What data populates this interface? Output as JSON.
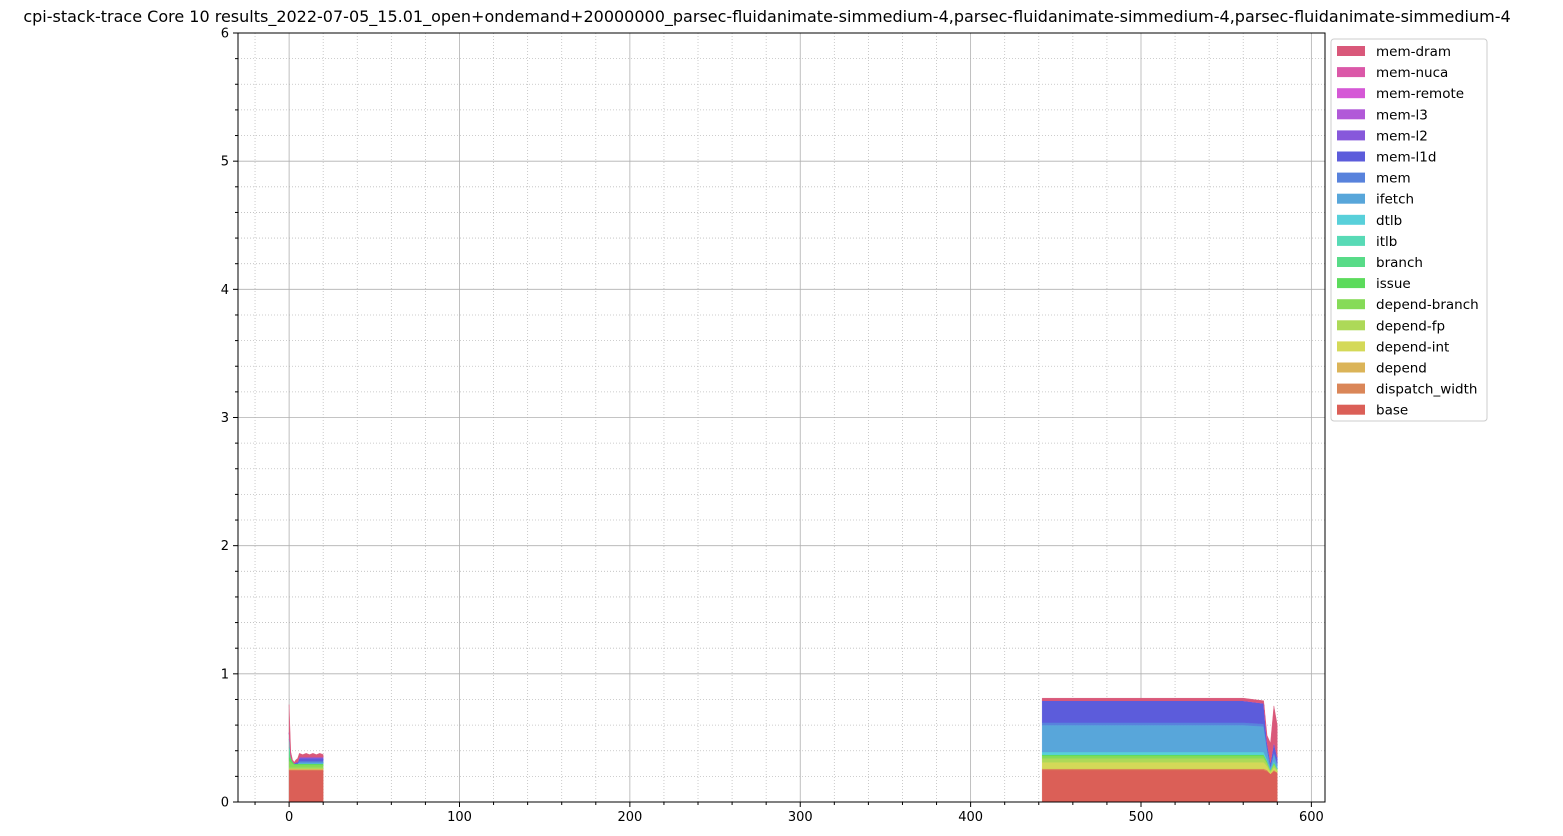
{
  "chart_data": {
    "type": "area",
    "title": "cpi-stack-trace Core 10 results_2022-07-05_15.01_open+ondemand+20000000_parsec-fluidanimate-simmedium-4,parsec-fluidanimate-simmedium-4,parsec-fluidanimate-simmedium-4",
    "xlabel": "",
    "ylabel": "",
    "xlim": [
      -30,
      608
    ],
    "ylim": [
      0,
      6
    ],
    "x_ticks": [
      "0",
      "100",
      "200",
      "300",
      "400",
      "500",
      "600"
    ],
    "y_ticks": [
      "0",
      "1",
      "2",
      "3",
      "4",
      "5",
      "6"
    ],
    "grid": true,
    "minor_grid": true,
    "legend_position": "outside-top-right",
    "stack_order": [
      "base",
      "dispatch_width",
      "depend",
      "depend-int",
      "depend-fp",
      "depend-branch",
      "issue",
      "branch",
      "itlb",
      "dtlb",
      "ifetch",
      "mem",
      "mem-l1d",
      "mem-l2",
      "mem-l3",
      "mem-remote",
      "mem-nuca",
      "mem-dram"
    ],
    "legend": [
      "mem-dram",
      "mem-nuca",
      "mem-remote",
      "mem-l3",
      "mem-l2",
      "mem-l1d",
      "mem",
      "ifetch",
      "dtlb",
      "itlb",
      "branch",
      "issue",
      "depend-branch",
      "depend-fp",
      "depend-int",
      "depend",
      "dispatch_width",
      "base"
    ],
    "colors": {
      "mem-dram": "#d9587a",
      "mem-nuca": "#db58a8",
      "mem-remote": "#d558d6",
      "mem-l3": "#b159d8",
      "mem-l2": "#8758db",
      "mem-l1d": "#5c5cdb",
      "mem": "#5882dc",
      "ifetch": "#58a6da",
      "dtlb": "#58d0da",
      "itlb": "#58dab6",
      "branch": "#58db88",
      "issue": "#5cdb5c",
      "depend-branch": "#86db58",
      "depend-fp": "#add958",
      "depend-int": "#d4d958",
      "depend": "#dbb458",
      "dispatch_width": "#da8658",
      "base": "#db5f57"
    },
    "segments": [
      {
        "x": [
          0,
          1,
          2,
          3,
          4,
          5,
          6,
          8,
          10,
          12,
          14,
          16,
          18,
          20
        ],
        "series": {
          "base": [
            0.25,
            0.25,
            0.25,
            0.25,
            0.25,
            0.25,
            0.25,
            0.25,
            0.25,
            0.25,
            0.25,
            0.25,
            0.25,
            0.25
          ],
          "dispatch_width": [
            0,
            0,
            0,
            0,
            0,
            0,
            0,
            0,
            0,
            0,
            0,
            0,
            0,
            0
          ],
          "depend": [
            0.01,
            0.01,
            0.01,
            0.01,
            0.01,
            0.01,
            0.01,
            0.01,
            0.01,
            0.01,
            0.01,
            0.01,
            0.01,
            0.01
          ],
          "depend-int": [
            0,
            0,
            0,
            0,
            0,
            0,
            0,
            0,
            0,
            0,
            0,
            0,
            0,
            0
          ],
          "depend-fp": [
            0.01,
            0.01,
            0.01,
            0.01,
            0.01,
            0.01,
            0.01,
            0.01,
            0.01,
            0.01,
            0.01,
            0.01,
            0.01,
            0.01
          ],
          "depend-branch": [
            0.05,
            0.04,
            0.03,
            0.02,
            0.02,
            0.02,
            0.02,
            0.02,
            0.02,
            0.02,
            0.02,
            0.02,
            0.02,
            0.02
          ],
          "issue": [
            0.03,
            0.03,
            0.02,
            0.01,
            0.01,
            0.01,
            0.01,
            0.01,
            0.01,
            0.01,
            0.01,
            0.01,
            0.01,
            0.01
          ],
          "branch": [
            0.08,
            0.01,
            0,
            0,
            0,
            0,
            0,
            0,
            0,
            0,
            0,
            0,
            0,
            0
          ],
          "itlb": [
            0.06,
            0,
            0,
            0,
            0,
            0,
            0,
            0,
            0,
            0,
            0,
            0,
            0,
            0
          ],
          "dtlb": [
            0,
            0,
            0,
            0,
            0,
            0,
            0,
            0,
            0,
            0,
            0,
            0,
            0,
            0
          ],
          "ifetch": [
            0.05,
            0,
            0,
            0,
            0,
            0,
            0.01,
            0.01,
            0.01,
            0.01,
            0.01,
            0.01,
            0.01,
            0.01
          ],
          "mem": [
            0,
            0,
            0,
            0,
            0,
            0,
            0.01,
            0.01,
            0.01,
            0.01,
            0.01,
            0.01,
            0.01,
            0.01
          ],
          "mem-l1d": [
            0,
            0,
            0,
            0,
            0.01,
            0.01,
            0.02,
            0.02,
            0.02,
            0.02,
            0.02,
            0.02,
            0.02,
            0.02
          ],
          "mem-l2": [
            0,
            0,
            0,
            0,
            0,
            0,
            0.01,
            0.01,
            0.01,
            0.01,
            0.01,
            0.01,
            0.01,
            0.01
          ],
          "mem-l3": [
            0,
            0,
            0,
            0,
            0,
            0,
            0,
            0,
            0,
            0,
            0,
            0,
            0,
            0
          ],
          "mem-remote": [
            0,
            0,
            0,
            0,
            0,
            0,
            0,
            0,
            0,
            0,
            0,
            0,
            0,
            0
          ],
          "mem-nuca": [
            0,
            0,
            0,
            0,
            0,
            0,
            0,
            0,
            0,
            0,
            0,
            0,
            0,
            0
          ],
          "mem-dram": [
            0.22,
            0.04,
            0.01,
            0.01,
            0.02,
            0.03,
            0.03,
            0.02,
            0.03,
            0.02,
            0.03,
            0.02,
            0.03,
            0.02
          ]
        }
      },
      {
        "x": [
          442,
          443,
          460,
          480,
          500,
          520,
          540,
          560,
          572,
          574,
          576,
          578,
          580
        ],
        "series": {
          "base": [
            0.25,
            0.25,
            0.25,
            0.25,
            0.25,
            0.25,
            0.25,
            0.25,
            0.25,
            0.24,
            0.22,
            0.24,
            0.23
          ],
          "dispatch_width": [
            0.01,
            0.01,
            0.01,
            0.01,
            0.01,
            0.01,
            0.01,
            0.01,
            0.01,
            0.01,
            0,
            0.01,
            0
          ],
          "depend": [
            0,
            0,
            0,
            0,
            0,
            0,
            0,
            0,
            0,
            0,
            0,
            0,
            0
          ],
          "depend-int": [
            0.05,
            0.05,
            0.05,
            0.05,
            0.05,
            0.05,
            0.05,
            0.05,
            0.05,
            0.03,
            0.01,
            0.02,
            0.01
          ],
          "depend-fp": [
            0.03,
            0.03,
            0.03,
            0.03,
            0.03,
            0.03,
            0.03,
            0.03,
            0.03,
            0.02,
            0.01,
            0.02,
            0.01
          ],
          "depend-branch": [
            0.02,
            0.02,
            0.02,
            0.02,
            0.02,
            0.02,
            0.02,
            0.02,
            0.02,
            0.01,
            0.01,
            0.01,
            0.01
          ],
          "issue": [
            0.01,
            0.01,
            0.01,
            0.01,
            0.01,
            0.01,
            0.01,
            0.01,
            0.01,
            0.01,
            0,
            0.01,
            0
          ],
          "branch": [
            0,
            0,
            0,
            0,
            0,
            0,
            0,
            0,
            0,
            0,
            0,
            0,
            0
          ],
          "itlb": [
            0,
            0,
            0,
            0,
            0,
            0,
            0,
            0,
            0,
            0,
            0,
            0,
            0
          ],
          "dtlb": [
            0.02,
            0.02,
            0.02,
            0.02,
            0.02,
            0.02,
            0.02,
            0.02,
            0.02,
            0.01,
            0,
            0.01,
            0
          ],
          "ifetch": [
            0.21,
            0.21,
            0.21,
            0.21,
            0.21,
            0.21,
            0.21,
            0.21,
            0.2,
            0.08,
            0.02,
            0.06,
            0.03
          ],
          "mem": [
            0.02,
            0.02,
            0.02,
            0.02,
            0.02,
            0.02,
            0.02,
            0.02,
            0.02,
            0.01,
            0.01,
            0.01,
            0.01
          ],
          "mem-l1d": [
            0.17,
            0.17,
            0.17,
            0.17,
            0.17,
            0.17,
            0.17,
            0.17,
            0.16,
            0.05,
            0.03,
            0.08,
            0.05
          ],
          "mem-l2": [
            0,
            0,
            0,
            0,
            0,
            0,
            0,
            0,
            0,
            0,
            0,
            0,
            0
          ],
          "mem-l3": [
            0,
            0,
            0,
            0,
            0,
            0,
            0,
            0,
            0,
            0,
            0,
            0,
            0
          ],
          "mem-remote": [
            0,
            0,
            0,
            0,
            0,
            0,
            0,
            0,
            0,
            0,
            0,
            0,
            0
          ],
          "mem-nuca": [
            0,
            0,
            0,
            0,
            0,
            0,
            0,
            0,
            0,
            0,
            0,
            0,
            0
          ],
          "mem-dram": [
            0.02,
            0.02,
            0.02,
            0.02,
            0.02,
            0.02,
            0.02,
            0.02,
            0.02,
            0.05,
            0.15,
            0.28,
            0.25
          ]
        }
      }
    ]
  }
}
